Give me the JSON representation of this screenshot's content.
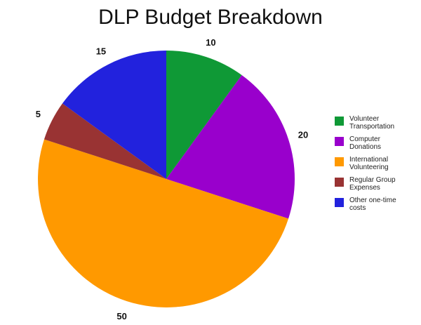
{
  "chart_data": {
    "type": "pie",
    "title": "DLP Budget Breakdown",
    "slices": [
      {
        "label": "Volunteer\nTransportation",
        "value": 10,
        "color": "#0f9936"
      },
      {
        "label": "Computer\nDonations",
        "value": 20,
        "color": "#9900cc"
      },
      {
        "label": "International\nVolunteering",
        "value": 50,
        "color": "#ff9900"
      },
      {
        "label": "Regular Group\nExpenses",
        "value": 5,
        "color": "#993333"
      },
      {
        "label": "Other one-time\ncosts",
        "value": 15,
        "color": "#2222dd"
      }
    ],
    "legend_position": "right",
    "start_angle": "top, clockwise"
  }
}
